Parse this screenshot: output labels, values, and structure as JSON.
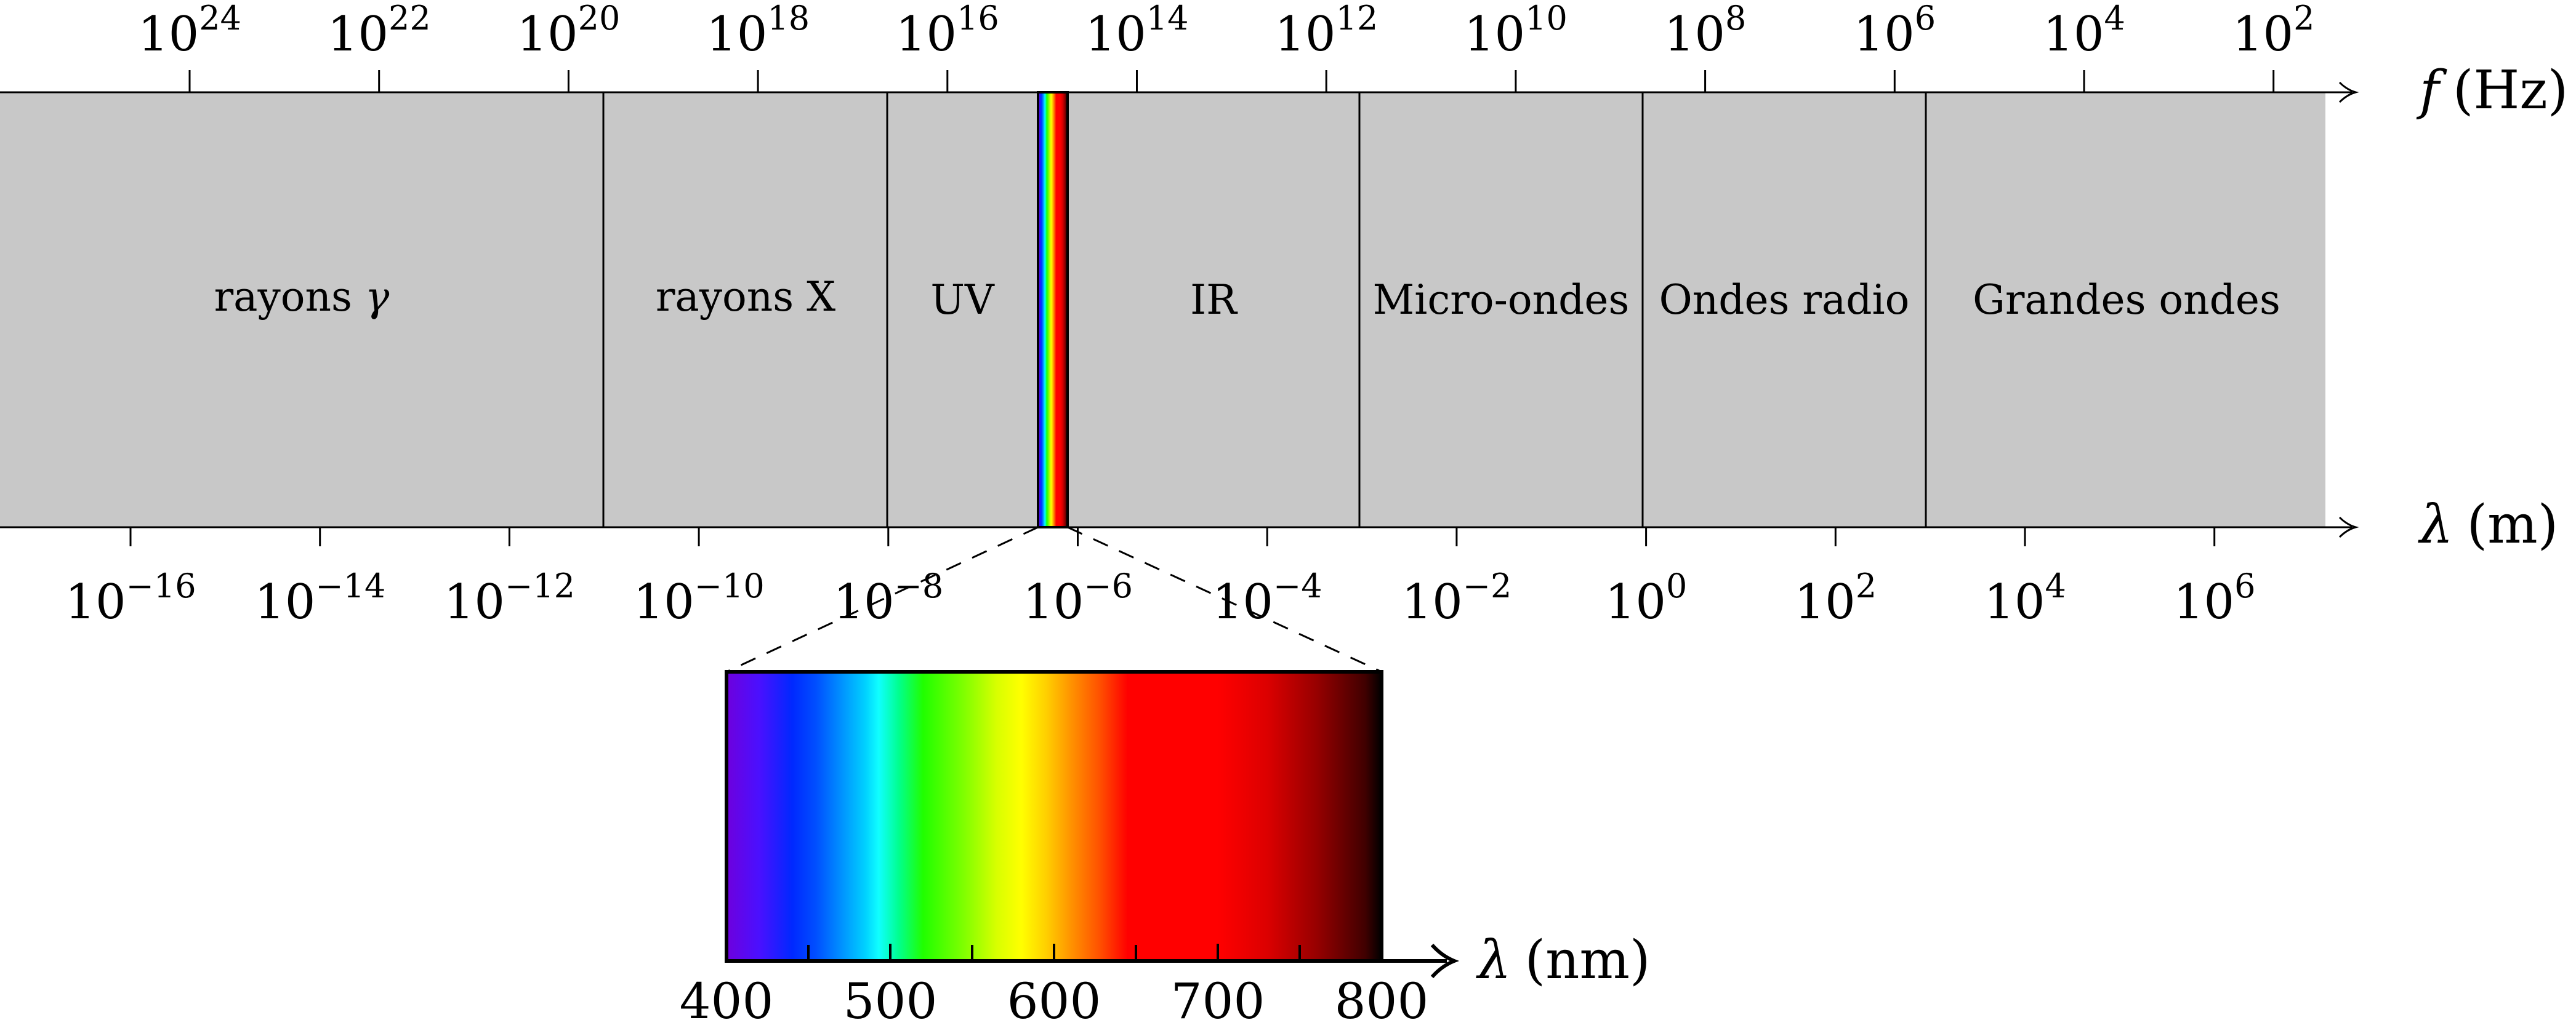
{
  "title": "",
  "frequency_axis": {
    "symbol": "f",
    "unit": "(Hz)",
    "ticks": [
      {
        "base": "10",
        "exp": "24"
      },
      {
        "base": "10",
        "exp": "22"
      },
      {
        "base": "10",
        "exp": "20"
      },
      {
        "base": "10",
        "exp": "18"
      },
      {
        "base": "10",
        "exp": "16"
      },
      {
        "base": "10",
        "exp": "14"
      },
      {
        "base": "10",
        "exp": "12"
      },
      {
        "base": "10",
        "exp": "10"
      },
      {
        "base": "10",
        "exp": "8"
      },
      {
        "base": "10",
        "exp": "6"
      },
      {
        "base": "10",
        "exp": "4"
      },
      {
        "base": "10",
        "exp": "2"
      }
    ]
  },
  "wavelength_axis": {
    "symbol": "λ",
    "unit": "(m)",
    "ticks": [
      {
        "base": "10",
        "exp": "−16"
      },
      {
        "base": "10",
        "exp": "−14"
      },
      {
        "base": "10",
        "exp": "−12"
      },
      {
        "base": "10",
        "exp": "−10"
      },
      {
        "base": "10",
        "exp": "−8"
      },
      {
        "base": "10",
        "exp": "−6"
      },
      {
        "base": "10",
        "exp": "−4"
      },
      {
        "base": "10",
        "exp": "−2"
      },
      {
        "base": "10",
        "exp": "0"
      },
      {
        "base": "10",
        "exp": "2"
      },
      {
        "base": "10",
        "exp": "4"
      },
      {
        "base": "10",
        "exp": "6"
      }
    ]
  },
  "bands": [
    {
      "label": "rayons ",
      "symbol": "γ"
    },
    {
      "label": "rayons X",
      "symbol": ""
    },
    {
      "label": "UV",
      "symbol": ""
    },
    {
      "label": "IR",
      "symbol": ""
    },
    {
      "label": "Micro-ondes",
      "symbol": ""
    },
    {
      "label": "Ondes radio",
      "symbol": ""
    },
    {
      "label": "Grandes ondes",
      "symbol": ""
    }
  ],
  "visible_zoom": {
    "axis_symbol": "λ",
    "axis_unit": "(nm)",
    "range_nm": [
      400,
      800
    ],
    "ticks": [
      "400",
      "500",
      "600",
      "700",
      "800"
    ],
    "minor_ticks_nm": [
      450,
      550,
      650,
      750
    ],
    "gradient_stops": [
      {
        "nm": 400,
        "color": "#6e00dd"
      },
      {
        "nm": 420,
        "color": "#4a10ff"
      },
      {
        "nm": 440,
        "color": "#0028ff"
      },
      {
        "nm": 455,
        "color": "#0050ff"
      },
      {
        "nm": 470,
        "color": "#0090ff"
      },
      {
        "nm": 485,
        "color": "#00d2ff"
      },
      {
        "nm": 493,
        "color": "#10ffff"
      },
      {
        "nm": 505,
        "color": "#00ff90"
      },
      {
        "nm": 520,
        "color": "#20ff00"
      },
      {
        "nm": 545,
        "color": "#80ff00"
      },
      {
        "nm": 565,
        "color": "#d8ff00"
      },
      {
        "nm": 580,
        "color": "#ffff00"
      },
      {
        "nm": 595,
        "color": "#ffd000"
      },
      {
        "nm": 610,
        "color": "#ff9400"
      },
      {
        "nm": 628,
        "color": "#ff5000"
      },
      {
        "nm": 645,
        "color": "#ff0000"
      },
      {
        "nm": 700,
        "color": "#ff0000"
      },
      {
        "nm": 730,
        "color": "#dc0000"
      },
      {
        "nm": 760,
        "color": "#980000"
      },
      {
        "nm": 790,
        "color": "#400000"
      },
      {
        "nm": 800,
        "color": "#000000"
      }
    ]
  },
  "colors": {
    "band_fill": "#c8c8c8",
    "line": "#000000"
  }
}
